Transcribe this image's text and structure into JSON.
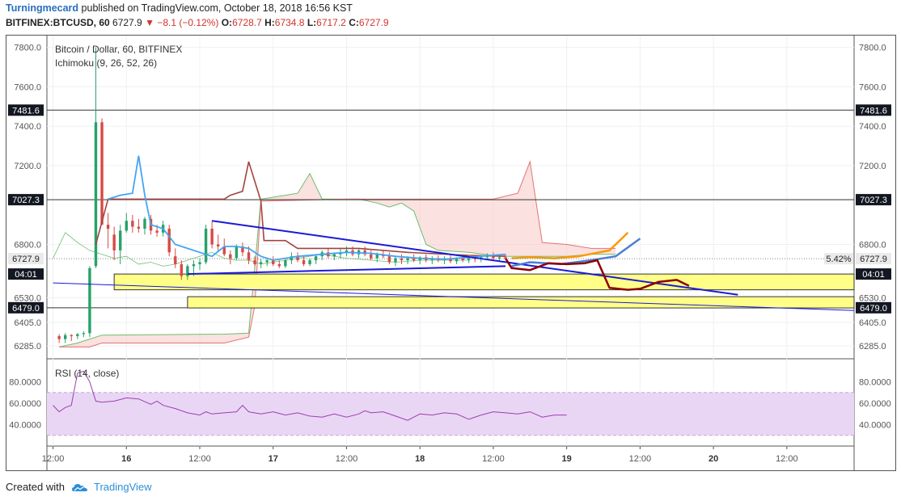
{
  "header": {
    "author": "Turningmecard",
    "published_text": "published on TradingView.com, October 18, 2018 16:56 KST",
    "symbol": "BITFINEX:BTCUSD, 60",
    "last": "6727.9",
    "change": "−8.1 (−0.12%)",
    "o_label": "O:",
    "o_value": "6728.7",
    "h_label": "H:",
    "h_value": "6734.8",
    "l_label": "L:",
    "l_value": "6717.2",
    "c_label": "C:",
    "c_value": "6727.9"
  },
  "legend": {
    "title": "Bitcoin / Dollar, 60, BITFINEX",
    "indicator": "Ichimoku (9, 26, 52, 26)",
    "rsi": "RSI (14, close)"
  },
  "footer": {
    "created_with": "Created with",
    "brand": "TradingView"
  },
  "colors": {
    "up": "#26a269",
    "down": "#d64a45",
    "conversion": "#42a5f5",
    "base": "#a2443f",
    "span_a": "#6cbf6c",
    "span_b": "#e57373",
    "trendline": "#1a1ad6",
    "zone": "#ffff88",
    "rsi": "#9c3fae",
    "rsi_band": "#e9d6f5"
  },
  "chart_data": {
    "type": "candlestick",
    "title": "Bitcoin / Dollar, 60, BITFINEX",
    "ylim": [
      6220,
      7860
    ],
    "y_ticks": [
      "7800.0",
      "7600.0",
      "7400.0",
      "7200.0",
      "6800.0",
      "6530.0",
      "6405.0",
      "6285.0"
    ],
    "y_tick_values": [
      7800,
      7600,
      7400,
      7200,
      6800,
      6530,
      6405,
      6285
    ],
    "x_ticks": [
      "12:00",
      "16",
      "12:00",
      "17",
      "12:00",
      "18",
      "12:00",
      "19",
      "12:00",
      "20",
      "12:00"
    ],
    "x_tick_hours": [
      12,
      24,
      36,
      48,
      60,
      72,
      84,
      96,
      108,
      120,
      132
    ],
    "x_range_hours": [
      11,
      143
    ],
    "horizontal_levels": [
      {
        "value": 7481.6,
        "label": "7481.6"
      },
      {
        "value": 7027.3,
        "label": "7027.3"
      },
      {
        "value": 6479.0,
        "label": "6479.0"
      }
    ],
    "price_markers": [
      {
        "value": 6727.9,
        "label": "6727.9",
        "pct": "5.42%"
      },
      {
        "value": 6650,
        "label": "04:01"
      }
    ],
    "zones": [
      {
        "x_start": 22,
        "x_end": 143,
        "y_top": 6650,
        "y_bottom": 6570
      },
      {
        "x_start": 34,
        "x_end": 143,
        "y_top": 6535,
        "y_bottom": 6478
      }
    ],
    "candles": [
      [
        13,
        6335,
        6345,
        6300,
        6320
      ],
      [
        14,
        6320,
        6350,
        6300,
        6340
      ],
      [
        15,
        6340,
        6345,
        6310,
        6335
      ],
      [
        16,
        6335,
        6350,
        6320,
        6345
      ],
      [
        17,
        6345,
        6360,
        6330,
        6350
      ],
      [
        18,
        6350,
        6690,
        6330,
        6680
      ],
      [
        19,
        6690,
        7800,
        6680,
        7420
      ],
      [
        20,
        7420,
        7440,
        6900,
        6900
      ],
      [
        21,
        6900,
        6960,
        6780,
        6880
      ],
      [
        22,
        6850,
        6890,
        6720,
        6770
      ],
      [
        23,
        6770,
        6900,
        6700,
        6870
      ],
      [
        24,
        6870,
        6960,
        6860,
        6920
      ],
      [
        25,
        6920,
        6950,
        6860,
        6890
      ],
      [
        26,
        6890,
        6930,
        6860,
        6880
      ],
      [
        27,
        6880,
        6940,
        6850,
        6930
      ],
      [
        28,
        6930,
        6950,
        6850,
        6870
      ],
      [
        29,
        6870,
        6900,
        6840,
        6860
      ],
      [
        30,
        6860,
        6920,
        6840,
        6900
      ],
      [
        31,
        6880,
        6900,
        6740,
        6760
      ],
      [
        32,
        6740,
        6780,
        6680,
        6700
      ],
      [
        33,
        6700,
        6720,
        6620,
        6640
      ],
      [
        34,
        6640,
        6700,
        6620,
        6690
      ],
      [
        35,
        6690,
        6720,
        6640,
        6700
      ],
      [
        36,
        6700,
        6730,
        6670,
        6710
      ],
      [
        37,
        6710,
        6900,
        6700,
        6880
      ],
      [
        38,
        6880,
        6920,
        6780,
        6800
      ],
      [
        39,
        6800,
        6850,
        6760,
        6790
      ],
      [
        40,
        6790,
        6830,
        6740,
        6750
      ],
      [
        41,
        6750,
        6770,
        6700,
        6730
      ],
      [
        42,
        6730,
        6800,
        6720,
        6790
      ],
      [
        43,
        6790,
        6810,
        6740,
        6760
      ],
      [
        44,
        6760,
        6790,
        6700,
        6720
      ],
      [
        45,
        6720,
        6740,
        6690,
        6700
      ],
      [
        46,
        6700,
        6730,
        6680,
        6710
      ],
      [
        47,
        6710,
        6730,
        6690,
        6720
      ],
      [
        48,
        6720,
        6740,
        6690,
        6700
      ],
      [
        49,
        6700,
        6720,
        6680,
        6690
      ],
      [
        50,
        6690,
        6730,
        6680,
        6720
      ],
      [
        51,
        6720,
        6760,
        6700,
        6740
      ],
      [
        52,
        6740,
        6760,
        6710,
        6720
      ],
      [
        53,
        6720,
        6740,
        6690,
        6700
      ],
      [
        54,
        6700,
        6730,
        6690,
        6720
      ],
      [
        55,
        6720,
        6750,
        6700,
        6740
      ],
      [
        56,
        6740,
        6770,
        6720,
        6760
      ],
      [
        57,
        6760,
        6780,
        6730,
        6740
      ],
      [
        58,
        6740,
        6760,
        6720,
        6750
      ],
      [
        59,
        6750,
        6780,
        6730,
        6760
      ],
      [
        60,
        6760,
        6790,
        6740,
        6770
      ],
      [
        61,
        6770,
        6790,
        6740,
        6750
      ],
      [
        62,
        6750,
        6780,
        6730,
        6770
      ],
      [
        63,
        6770,
        6790,
        6740,
        6750
      ],
      [
        64,
        6750,
        6770,
        6720,
        6730
      ],
      [
        65,
        6730,
        6760,
        6710,
        6750
      ],
      [
        66,
        6750,
        6770,
        6730,
        6740
      ],
      [
        67,
        6740,
        6760,
        6700,
        6710
      ],
      [
        68,
        6710,
        6740,
        6690,
        6730
      ],
      [
        69,
        6730,
        6750,
        6700,
        6720
      ],
      [
        70,
        6720,
        6740,
        6700,
        6730
      ],
      [
        71,
        6730,
        6750,
        6710,
        6720
      ],
      [
        72,
        6720,
        6740,
        6700,
        6735
      ],
      [
        73,
        6735,
        6750,
        6710,
        6720
      ],
      [
        74,
        6720,
        6740,
        6700,
        6730
      ],
      [
        75,
        6730,
        6745,
        6710,
        6720
      ],
      [
        76,
        6720,
        6740,
        6700,
        6725
      ],
      [
        77,
        6725,
        6745,
        6705,
        6715
      ],
      [
        78,
        6715,
        6735,
        6700,
        6730
      ],
      [
        79,
        6730,
        6750,
        6710,
        6720
      ],
      [
        80,
        6720,
        6740,
        6705,
        6730
      ],
      [
        81,
        6730,
        6745,
        6710,
        6725
      ],
      [
        82,
        6725,
        6740,
        6710,
        6735
      ],
      [
        83,
        6735,
        6755,
        6720,
        6740
      ],
      [
        84,
        6740,
        6760,
        6720,
        6730
      ],
      [
        85,
        6730,
        6750,
        6715,
        6735
      ],
      [
        86,
        6735,
        6750,
        6720,
        6728
      ]
    ],
    "ichimoku": {
      "conversion": [
        [
          21,
          7030
        ],
        [
          23,
          7050
        ],
        [
          25,
          7060
        ],
        [
          26,
          7250
        ],
        [
          27,
          7050
        ],
        [
          28,
          6900
        ],
        [
          30,
          6880
        ],
        [
          32,
          6800
        ],
        [
          34,
          6780
        ],
        [
          36,
          6760
        ],
        [
          38,
          6740
        ],
        [
          40,
          6790
        ],
        [
          42,
          6790
        ],
        [
          44,
          6780
        ],
        [
          46,
          6740
        ],
        [
          48,
          6720
        ],
        [
          50,
          6730
        ],
        [
          52,
          6740
        ],
        [
          56,
          6750
        ],
        [
          60,
          6760
        ],
        [
          64,
          6755
        ],
        [
          68,
          6740
        ],
        [
          72,
          6730
        ],
        [
          76,
          6725
        ],
        [
          80,
          6735
        ],
        [
          86,
          6750
        ]
      ],
      "base": [
        [
          19,
          6800
        ],
        [
          21,
          7030
        ],
        [
          40,
          7030
        ],
        [
          41,
          7050
        ],
        [
          43,
          7070
        ],
        [
          44,
          7220
        ],
        [
          46,
          7020
        ],
        [
          46.5,
          6820
        ],
        [
          50,
          6820
        ],
        [
          52,
          6780
        ],
        [
          62,
          6780
        ],
        [
          70,
          6760
        ],
        [
          80,
          6745
        ],
        [
          86,
          6740
        ]
      ],
      "span_a": [
        [
          13,
          6280
        ],
        [
          16,
          6300
        ],
        [
          18,
          6320
        ],
        [
          20,
          6340
        ],
        [
          40,
          6345
        ],
        [
          44,
          6350
        ],
        [
          45,
          6690
        ],
        [
          46,
          7030
        ],
        [
          50,
          7050
        ],
        [
          52,
          7060
        ],
        [
          54,
          7160
        ],
        [
          56,
          7030
        ],
        [
          62,
          7030
        ],
        [
          65,
          7010
        ],
        [
          67,
          6990
        ],
        [
          69,
          7010
        ],
        [
          71,
          6970
        ],
        [
          73,
          6800
        ],
        [
          75,
          6770
        ],
        [
          80,
          6760
        ],
        [
          85,
          6740
        ],
        [
          90,
          6740
        ],
        [
          96,
          6740
        ],
        [
          100,
          6750
        ],
        [
          104,
          6750
        ]
      ],
      "span_b": [
        [
          13,
          6280
        ],
        [
          18,
          6280
        ],
        [
          20,
          6300
        ],
        [
          40,
          6300
        ],
        [
          44,
          6330
        ],
        [
          45,
          6490
        ],
        [
          46,
          7020
        ],
        [
          60,
          7030
        ],
        [
          70,
          7030
        ],
        [
          75,
          7030
        ],
        [
          80,
          7030
        ],
        [
          84,
          7030
        ],
        [
          88,
          7060
        ],
        [
          90,
          7220
        ],
        [
          92,
          6810
        ],
        [
          96,
          6800
        ],
        [
          100,
          6780
        ],
        [
          104,
          6780
        ]
      ],
      "lagging": [
        [
          12,
          6730
        ],
        [
          14,
          6860
        ],
        [
          16,
          6810
        ],
        [
          18,
          6770
        ],
        [
          20,
          6750
        ],
        [
          22,
          6730
        ],
        [
          24,
          6740
        ],
        [
          26,
          6700
        ],
        [
          28,
          6710
        ],
        [
          30,
          6690
        ],
        [
          32,
          6700
        ],
        [
          34,
          6720
        ],
        [
          36,
          6740
        ],
        [
          38,
          6760
        ],
        [
          40,
          6730
        ],
        [
          42,
          6720
        ],
        [
          44,
          6720
        ],
        [
          46,
          6700
        ],
        [
          48,
          6710
        ],
        [
          52,
          6730
        ],
        [
          56,
          6750
        ],
        [
          60,
          6730
        ],
        [
          64,
          6720
        ],
        [
          68,
          6710
        ],
        [
          72,
          6720
        ],
        [
          76,
          6720
        ],
        [
          80,
          6720
        ]
      ]
    },
    "drawings": {
      "trendline_upper": [
        [
          38,
          6920
        ],
        [
          124,
          6545
        ]
      ],
      "trendline_lower": [
        [
          34,
          6650
        ],
        [
          86,
          6690
        ]
      ],
      "trendline_long": [
        [
          12,
          6605
        ],
        [
          143,
          6465
        ]
      ],
      "orange_path": [
        [
          87,
          6730
        ],
        [
          90,
          6735
        ],
        [
          94,
          6730
        ],
        [
          98,
          6740
        ],
        [
          103,
          6770
        ],
        [
          106,
          6860
        ]
      ],
      "blue_path": [
        [
          87,
          6690
        ],
        [
          90,
          6710
        ],
        [
          95,
          6700
        ],
        [
          100,
          6720
        ],
        [
          104,
          6740
        ],
        [
          108,
          6830
        ]
      ],
      "maroon_path": [
        [
          86,
          6730
        ],
        [
          87,
          6680
        ],
        [
          90,
          6670
        ],
        [
          93,
          6705
        ],
        [
          96,
          6700
        ],
        [
          99,
          6705
        ],
        [
          101,
          6720
        ],
        [
          103,
          6580
        ],
        [
          106,
          6570
        ],
        [
          108,
          6575
        ],
        [
          111,
          6610
        ],
        [
          114,
          6620
        ],
        [
          116,
          6590
        ]
      ]
    },
    "rsi": {
      "title": "RSI (14, close)",
      "ylim": [
        20,
        100
      ],
      "y_ticks": [
        "80.0000",
        "60.0000",
        "40.0000"
      ],
      "y_tick_values": [
        80,
        60,
        40
      ],
      "bands": [
        70,
        30
      ],
      "values": [
        [
          12,
          58
        ],
        [
          13,
          52
        ],
        [
          14,
          56
        ],
        [
          15,
          58
        ],
        [
          16,
          88
        ],
        [
          17,
          90
        ],
        [
          18,
          80
        ],
        [
          19,
          62
        ],
        [
          20,
          61
        ],
        [
          22,
          62
        ],
        [
          24,
          65
        ],
        [
          26,
          64
        ],
        [
          28,
          59
        ],
        [
          29,
          62
        ],
        [
          30,
          58
        ],
        [
          32,
          55
        ],
        [
          34,
          51
        ],
        [
          36,
          49
        ],
        [
          37,
          52
        ],
        [
          38,
          50
        ],
        [
          40,
          51
        ],
        [
          42,
          52
        ],
        [
          43,
          58
        ],
        [
          44,
          52
        ],
        [
          46,
          50
        ],
        [
          48,
          52
        ],
        [
          50,
          49
        ],
        [
          52,
          51
        ],
        [
          54,
          48
        ],
        [
          56,
          47
        ],
        [
          58,
          50
        ],
        [
          60,
          47
        ],
        [
          62,
          50
        ],
        [
          63,
          53
        ],
        [
          64,
          51
        ],
        [
          66,
          52
        ],
        [
          68,
          48
        ],
        [
          70,
          44
        ],
        [
          71,
          47
        ],
        [
          72,
          50
        ],
        [
          74,
          49
        ],
        [
          76,
          51
        ],
        [
          78,
          50
        ],
        [
          80,
          45
        ],
        [
          82,
          49
        ],
        [
          84,
          52
        ],
        [
          86,
          51
        ],
        [
          88,
          50
        ],
        [
          90,
          52
        ],
        [
          92,
          47
        ],
        [
          94,
          49
        ],
        [
          96,
          49
        ]
      ]
    }
  }
}
